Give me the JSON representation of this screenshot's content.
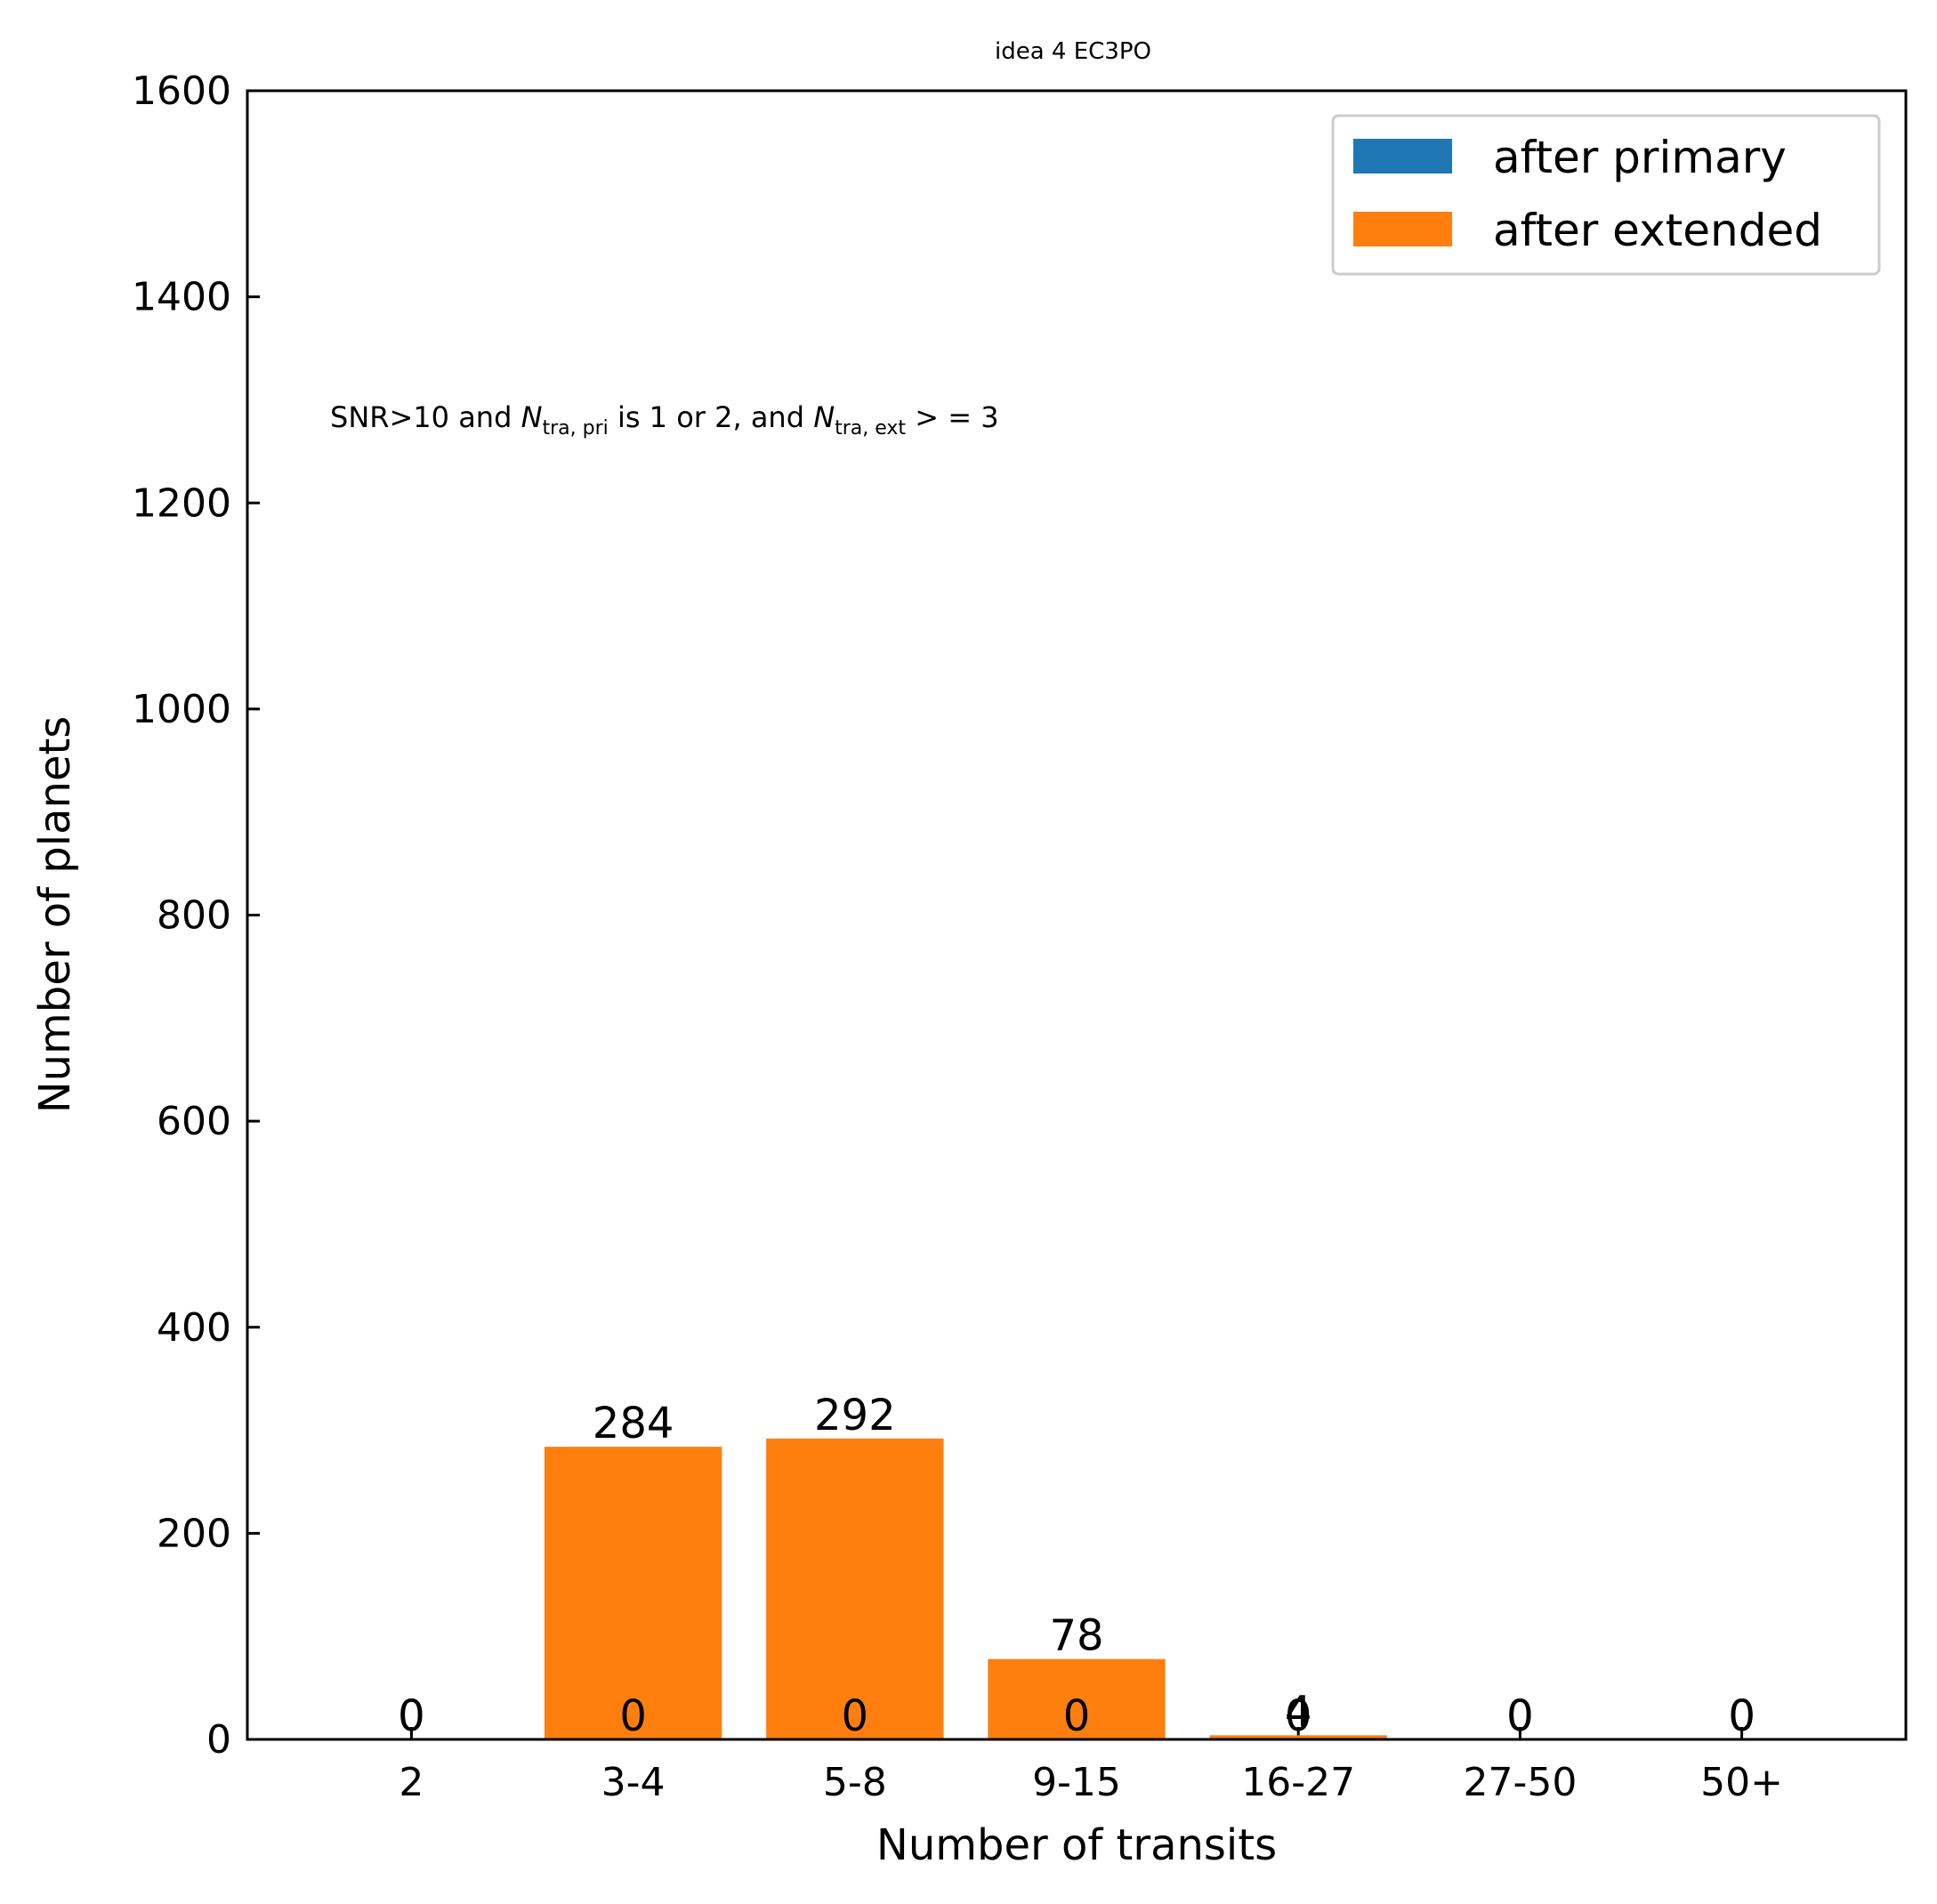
{
  "chart_data": {
    "type": "bar",
    "title": "idea 4 EC3PO",
    "xlabel": "Number of transits",
    "ylabel": "Number of planets",
    "categories": [
      "2",
      "3-4",
      "5-8",
      "9-15",
      "16-27",
      "27-50",
      "50+"
    ],
    "series": [
      {
        "name": "after primary",
        "values": [
          0,
          0,
          0,
          0,
          0,
          0,
          0
        ],
        "color": "#1f77b4"
      },
      {
        "name": "after extended",
        "values": [
          0,
          284,
          292,
          78,
          4,
          0,
          0
        ],
        "color": "#ff7f0e"
      }
    ],
    "ylim": [
      0,
      1600
    ],
    "yticks": [
      0,
      200,
      400,
      600,
      800,
      1000,
      1200,
      1400,
      1600
    ],
    "grid": false,
    "legend_position": "top-right",
    "annotation": {
      "prefix": "SNR>10 and ",
      "n": "N",
      "sub1": "tra, pri",
      "middle": " is 1 or 2, and ",
      "sub2": "tra, ext",
      "suffix": " > = 3"
    }
  }
}
